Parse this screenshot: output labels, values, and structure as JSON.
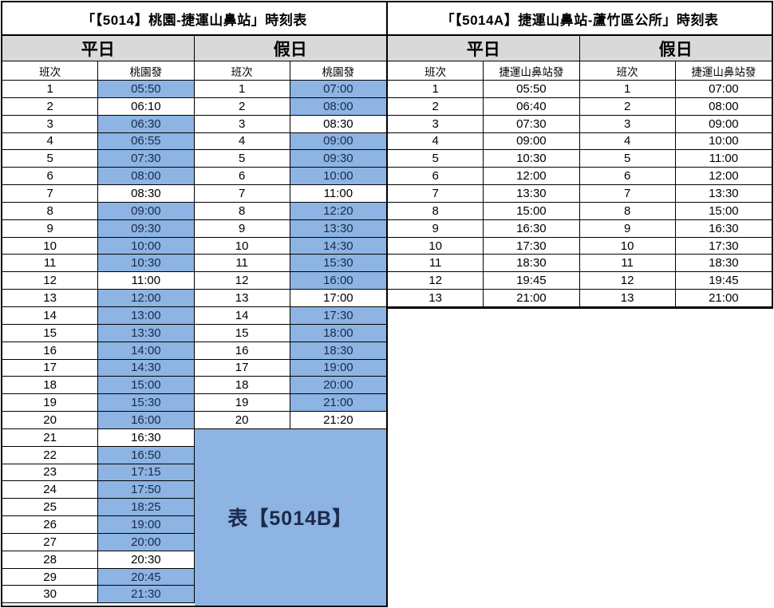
{
  "colors": {
    "highlight_blue": "#8DB4E2",
    "header_gray": "#D9D9D9",
    "time_text_on_blue": "#1B2A4A",
    "border_black": "#000000"
  },
  "left_table": {
    "title": "「【5014】桃園-捷運山鼻站」時刻表",
    "note": "表【5014B】",
    "sections": [
      {
        "day_label": "平日",
        "col_headers": [
          "班次",
          "桃園發"
        ],
        "rows": [
          {
            "n": "1",
            "t": "05:50",
            "hl": true
          },
          {
            "n": "2",
            "t": "06:10",
            "hl": false
          },
          {
            "n": "3",
            "t": "06:30",
            "hl": true
          },
          {
            "n": "4",
            "t": "06:55",
            "hl": true
          },
          {
            "n": "5",
            "t": "07:30",
            "hl": true
          },
          {
            "n": "6",
            "t": "08:00",
            "hl": true
          },
          {
            "n": "7",
            "t": "08:30",
            "hl": false
          },
          {
            "n": "8",
            "t": "09:00",
            "hl": true
          },
          {
            "n": "9",
            "t": "09:30",
            "hl": true
          },
          {
            "n": "10",
            "t": "10:00",
            "hl": true
          },
          {
            "n": "11",
            "t": "10:30",
            "hl": true
          },
          {
            "n": "12",
            "t": "11:00",
            "hl": false
          },
          {
            "n": "13",
            "t": "12:00",
            "hl": true
          },
          {
            "n": "14",
            "t": "13:00",
            "hl": true
          },
          {
            "n": "15",
            "t": "13:30",
            "hl": true
          },
          {
            "n": "16",
            "t": "14:00",
            "hl": true
          },
          {
            "n": "17",
            "t": "14:30",
            "hl": true
          },
          {
            "n": "18",
            "t": "15:00",
            "hl": true
          },
          {
            "n": "19",
            "t": "15:30",
            "hl": true
          },
          {
            "n": "20",
            "t": "16:00",
            "hl": true
          },
          {
            "n": "21",
            "t": "16:30",
            "hl": false
          },
          {
            "n": "22",
            "t": "16:50",
            "hl": true
          },
          {
            "n": "23",
            "t": "17:15",
            "hl": true
          },
          {
            "n": "24",
            "t": "17:50",
            "hl": true
          },
          {
            "n": "25",
            "t": "18:25",
            "hl": true
          },
          {
            "n": "26",
            "t": "19:00",
            "hl": true
          },
          {
            "n": "27",
            "t": "20:00",
            "hl": true
          },
          {
            "n": "28",
            "t": "20:30",
            "hl": false
          },
          {
            "n": "29",
            "t": "20:45",
            "hl": true
          },
          {
            "n": "30",
            "t": "21:30",
            "hl": true
          }
        ]
      },
      {
        "day_label": "假日",
        "col_headers": [
          "班次",
          "桃園發"
        ],
        "rows": [
          {
            "n": "1",
            "t": "07:00",
            "hl": true
          },
          {
            "n": "2",
            "t": "08:00",
            "hl": true
          },
          {
            "n": "3",
            "t": "08:30",
            "hl": false
          },
          {
            "n": "4",
            "t": "09:00",
            "hl": true
          },
          {
            "n": "5",
            "t": "09:30",
            "hl": true
          },
          {
            "n": "6",
            "t": "10:00",
            "hl": true
          },
          {
            "n": "7",
            "t": "11:00",
            "hl": false
          },
          {
            "n": "8",
            "t": "12:20",
            "hl": true
          },
          {
            "n": "9",
            "t": "13:30",
            "hl": true
          },
          {
            "n": "10",
            "t": "14:30",
            "hl": true
          },
          {
            "n": "11",
            "t": "15:30",
            "hl": true
          },
          {
            "n": "12",
            "t": "16:00",
            "hl": true
          },
          {
            "n": "13",
            "t": "17:00",
            "hl": false
          },
          {
            "n": "14",
            "t": "17:30",
            "hl": true
          },
          {
            "n": "15",
            "t": "18:00",
            "hl": true
          },
          {
            "n": "16",
            "t": "18:30",
            "hl": true
          },
          {
            "n": "17",
            "t": "19:00",
            "hl": true
          },
          {
            "n": "18",
            "t": "20:00",
            "hl": true
          },
          {
            "n": "19",
            "t": "21:00",
            "hl": true
          },
          {
            "n": "20",
            "t": "21:20",
            "hl": false
          }
        ]
      }
    ]
  },
  "right_table": {
    "title": "「【5014A】捷運山鼻站-蘆竹區公所」時刻表",
    "sections": [
      {
        "day_label": "平日",
        "col_headers": [
          "班次",
          "捷運山鼻站發"
        ],
        "rows": [
          {
            "n": "1",
            "t": "05:50",
            "hl": false
          },
          {
            "n": "2",
            "t": "06:40",
            "hl": false
          },
          {
            "n": "3",
            "t": "07:30",
            "hl": false
          },
          {
            "n": "4",
            "t": "09:00",
            "hl": false
          },
          {
            "n": "5",
            "t": "10:30",
            "hl": false
          },
          {
            "n": "6",
            "t": "12:00",
            "hl": false
          },
          {
            "n": "7",
            "t": "13:30",
            "hl": false
          },
          {
            "n": "8",
            "t": "15:00",
            "hl": false
          },
          {
            "n": "9",
            "t": "16:30",
            "hl": false
          },
          {
            "n": "10",
            "t": "17:30",
            "hl": false
          },
          {
            "n": "11",
            "t": "18:30",
            "hl": false
          },
          {
            "n": "12",
            "t": "19:45",
            "hl": false
          },
          {
            "n": "13",
            "t": "21:00",
            "hl": false
          }
        ]
      },
      {
        "day_label": "假日",
        "col_headers": [
          "班次",
          "捷運山鼻站發"
        ],
        "rows": [
          {
            "n": "1",
            "t": "07:00",
            "hl": false
          },
          {
            "n": "2",
            "t": "08:00",
            "hl": false
          },
          {
            "n": "3",
            "t": "09:00",
            "hl": false
          },
          {
            "n": "4",
            "t": "10:00",
            "hl": false
          },
          {
            "n": "5",
            "t": "11:00",
            "hl": false
          },
          {
            "n": "6",
            "t": "12:00",
            "hl": false
          },
          {
            "n": "7",
            "t": "13:30",
            "hl": false
          },
          {
            "n": "8",
            "t": "15:00",
            "hl": false
          },
          {
            "n": "9",
            "t": "16:30",
            "hl": false
          },
          {
            "n": "10",
            "t": "17:30",
            "hl": false
          },
          {
            "n": "11",
            "t": "18:30",
            "hl": false
          },
          {
            "n": "12",
            "t": "19:45",
            "hl": false
          },
          {
            "n": "13",
            "t": "21:00",
            "hl": false
          }
        ]
      }
    ]
  }
}
